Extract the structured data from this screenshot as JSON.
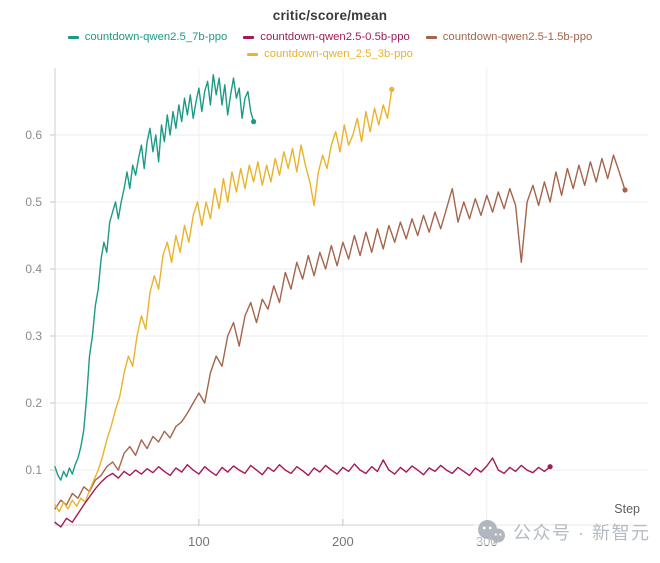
{
  "watermark": {
    "text": "公众号 · 新智元",
    "icon": "wechat-icon",
    "color": "#b2b8c0"
  },
  "chart_data": {
    "type": "line",
    "title": "critic/score/mean",
    "xlabel": "Step",
    "ylabel": "",
    "x_ticks": [
      100,
      200,
      300
    ],
    "y_ticks": [
      0.1,
      0.2,
      0.3,
      0.4,
      0.5,
      0.6
    ],
    "x_domain": [
      0,
      412
    ],
    "y_domain": [
      0.018,
      0.7
    ],
    "grid": true,
    "legend_position": "top",
    "legend_rows": [
      [
        "countdown-qwen2.5_7b-ppo",
        "countdown-qwen2.5-0.5b-ppo",
        "countdown-qwen2.5-1.5b-ppo"
      ],
      [
        "countdown-qwen_2.5_3b-ppo"
      ]
    ],
    "draw_order": [
      "countdown-qwen2.5-1.5b-ppo",
      "countdown-qwen_2.5_3b-ppo",
      "countdown-qwen2.5-0.5b-ppo",
      "countdown-qwen2.5_7b-ppo"
    ],
    "series": [
      {
        "name": "countdown-qwen2.5_7b-ppo",
        "color": "#1d9a86",
        "end_marker": true,
        "step_start": 0,
        "step_delta": 2,
        "values": [
          0.105,
          0.092,
          0.085,
          0.098,
          0.09,
          0.103,
          0.094,
          0.108,
          0.118,
          0.135,
          0.16,
          0.21,
          0.27,
          0.3,
          0.345,
          0.37,
          0.415,
          0.44,
          0.425,
          0.47,
          0.485,
          0.5,
          0.475,
          0.5,
          0.52,
          0.545,
          0.52,
          0.555,
          0.54,
          0.565,
          0.585,
          0.55,
          0.59,
          0.61,
          0.575,
          0.6,
          0.56,
          0.615,
          0.59,
          0.63,
          0.6,
          0.635,
          0.61,
          0.645,
          0.62,
          0.655,
          0.63,
          0.66,
          0.625,
          0.65,
          0.67,
          0.635,
          0.665,
          0.68,
          0.645,
          0.69,
          0.66,
          0.685,
          0.645,
          0.675,
          0.63,
          0.66,
          0.685,
          0.655,
          0.67,
          0.625,
          0.655,
          0.665,
          0.635,
          0.62
        ]
      },
      {
        "name": "countdown-qwen2.5-0.5b-ppo",
        "color": "#a01b58",
        "end_marker": true,
        "step_start": 0,
        "step_delta": 4,
        "values": [
          0.022,
          0.015,
          0.028,
          0.022,
          0.035,
          0.048,
          0.06,
          0.072,
          0.082,
          0.09,
          0.095,
          0.088,
          0.098,
          0.092,
          0.1,
          0.094,
          0.102,
          0.096,
          0.105,
          0.098,
          0.092,
          0.103,
          0.097,
          0.108,
          0.1,
          0.094,
          0.105,
          0.098,
          0.092,
          0.104,
          0.097,
          0.106,
          0.1,
          0.095,
          0.107,
          0.1,
          0.093,
          0.104,
          0.098,
          0.108,
          0.1,
          0.095,
          0.105,
          0.099,
          0.092,
          0.103,
          0.097,
          0.107,
          0.1,
          0.094,
          0.104,
          0.098,
          0.109,
          0.1,
          0.095,
          0.105,
          0.098,
          0.115,
          0.1,
          0.094,
          0.104,
          0.097,
          0.106,
          0.1,
          0.093,
          0.103,
          0.098,
          0.107,
          0.1,
          0.095,
          0.104,
          0.098,
          0.092,
          0.103,
          0.097,
          0.106,
          0.118,
          0.1,
          0.095,
          0.104,
          0.098,
          0.107,
          0.1,
          0.096,
          0.104,
          0.098,
          0.105
        ]
      },
      {
        "name": "countdown-qwen2.5-1.5b-ppo",
        "color": "#a5644c",
        "end_marker": true,
        "step_start": 0,
        "step_delta": 4,
        "values": [
          0.042,
          0.055,
          0.048,
          0.065,
          0.058,
          0.075,
          0.068,
          0.085,
          0.092,
          0.105,
          0.112,
          0.1,
          0.125,
          0.135,
          0.122,
          0.145,
          0.132,
          0.15,
          0.142,
          0.158,
          0.148,
          0.165,
          0.172,
          0.185,
          0.2,
          0.215,
          0.2,
          0.245,
          0.27,
          0.255,
          0.3,
          0.32,
          0.285,
          0.33,
          0.35,
          0.32,
          0.355,
          0.34,
          0.375,
          0.35,
          0.395,
          0.37,
          0.41,
          0.385,
          0.42,
          0.39,
          0.425,
          0.4,
          0.435,
          0.405,
          0.44,
          0.415,
          0.45,
          0.42,
          0.455,
          0.425,
          0.46,
          0.43,
          0.465,
          0.44,
          0.47,
          0.445,
          0.475,
          0.45,
          0.48,
          0.455,
          0.485,
          0.46,
          0.49,
          0.52,
          0.47,
          0.5,
          0.475,
          0.505,
          0.48,
          0.51,
          0.485,
          0.515,
          0.49,
          0.52,
          0.495,
          0.41,
          0.5,
          0.525,
          0.495,
          0.53,
          0.5,
          0.545,
          0.51,
          0.55,
          0.52,
          0.555,
          0.525,
          0.56,
          0.53,
          0.565,
          0.535,
          0.57,
          0.545,
          0.518
        ]
      },
      {
        "name": "countdown-qwen_2.5_3b-ppo",
        "color": "#e9b32b",
        "end_marker": true,
        "step_start": 0,
        "step_delta": 3,
        "values": [
          0.048,
          0.038,
          0.052,
          0.042,
          0.055,
          0.046,
          0.058,
          0.052,
          0.07,
          0.085,
          0.1,
          0.12,
          0.145,
          0.165,
          0.19,
          0.21,
          0.245,
          0.27,
          0.255,
          0.3,
          0.33,
          0.31,
          0.365,
          0.39,
          0.37,
          0.42,
          0.44,
          0.41,
          0.45,
          0.425,
          0.465,
          0.44,
          0.48,
          0.5,
          0.465,
          0.5,
          0.475,
          0.52,
          0.49,
          0.535,
          0.5,
          0.545,
          0.515,
          0.55,
          0.52,
          0.555,
          0.53,
          0.56,
          0.525,
          0.555,
          0.53,
          0.565,
          0.54,
          0.575,
          0.55,
          0.58,
          0.545,
          0.585,
          0.555,
          0.53,
          0.495,
          0.545,
          0.57,
          0.55,
          0.585,
          0.605,
          0.575,
          0.615,
          0.585,
          0.6,
          0.625,
          0.59,
          0.635,
          0.605,
          0.64,
          0.615,
          0.645,
          0.625,
          0.668
        ]
      }
    ],
    "style": {
      "grid_color": "#ebebeb",
      "vgrid_color": "#f0f0f0",
      "axis_color": "#cfcfcf",
      "tick_color": "#c6c6c6",
      "y_label_color": "#8b8b8b",
      "x_label_color": "#757575",
      "step_label_color": "#5f5f5f",
      "title_color": "#3a3a3a"
    }
  }
}
